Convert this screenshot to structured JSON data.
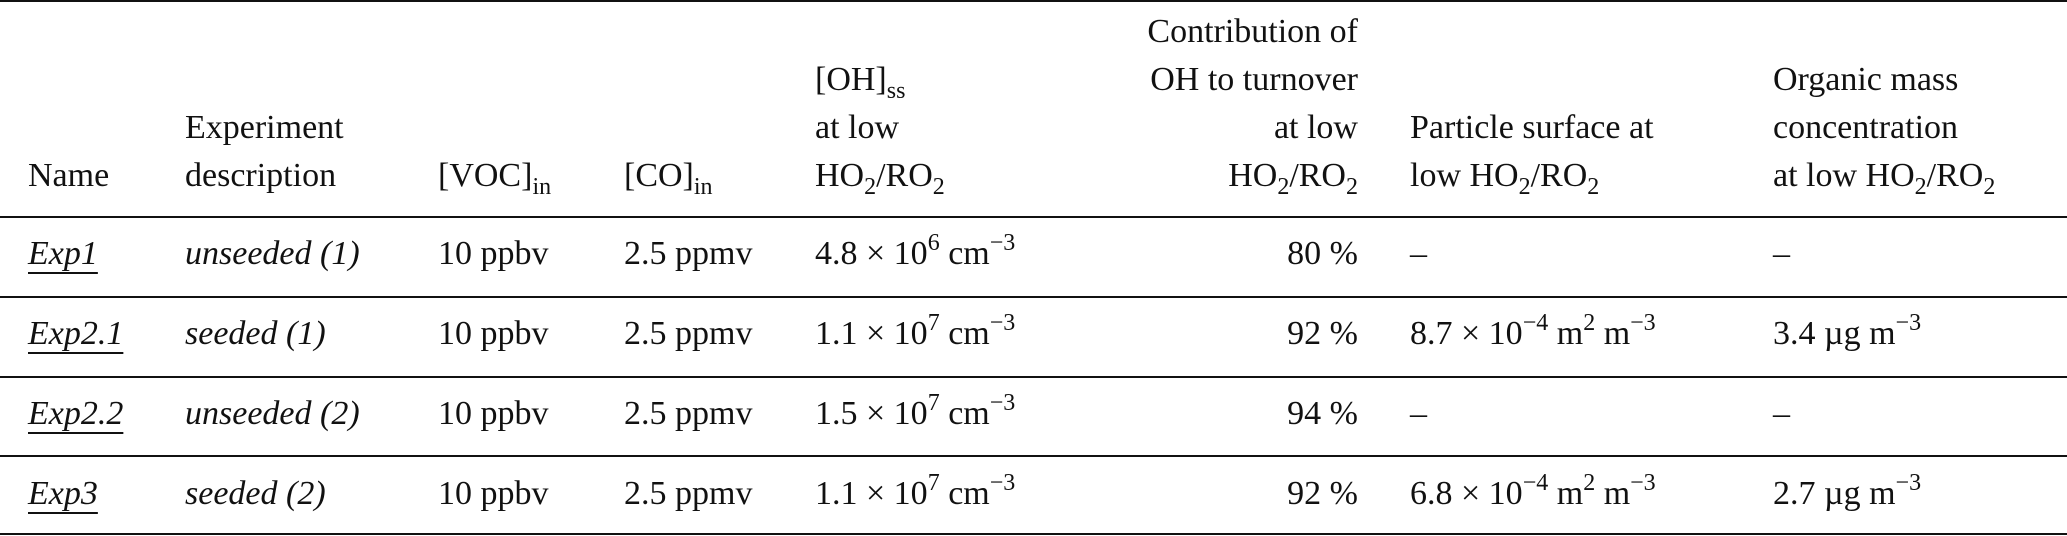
{
  "headers": {
    "name": "Name",
    "experiment_description": [
      "Experiment",
      "description"
    ],
    "voc": {
      "base": "[VOC]",
      "sub": "in"
    },
    "co": {
      "base": "[CO]",
      "sub": "in"
    },
    "oh_ss": {
      "line1_base": "[OH]",
      "line1_sub": "ss",
      "line2": "at low",
      "line3_a": "HO",
      "line3_sub1": "2",
      "line3_b": "/RO",
      "line3_sub2": "2"
    },
    "oh_contribution": {
      "line1": "Contribution of",
      "line2": "OH to turnover",
      "line3": "at low",
      "line4_a": "HO",
      "line4_sub1": "2",
      "line4_b": "/RO",
      "line4_sub2": "2"
    },
    "particle_surface": {
      "line1": "Particle surface at",
      "line2_a": "low HO",
      "line2_sub1": "2",
      "line2_b": "/RO",
      "line2_sub2": "2"
    },
    "organic_mass": {
      "line1": "Organic mass",
      "line2": "concentration",
      "line3_a": "at low HO",
      "line3_sub1": "2",
      "line3_b": "/RO",
      "line3_sub2": "2"
    }
  },
  "rows": [
    {
      "name": "Exp1",
      "description": "unseeded (1)",
      "voc": "10 ppbv",
      "co": "2.5 ppmv",
      "oh_mant": "4.8 × 10",
      "oh_exp": "6",
      "oh_unit": " cm",
      "oh_unit_exp": "−3",
      "contribution": "80 %",
      "surface": "–",
      "organic": "–"
    },
    {
      "name": "Exp2.1",
      "description": "seeded (1)",
      "voc": "10 ppbv",
      "co": "2.5 ppmv",
      "oh_mant": "1.1 × 10",
      "oh_exp": "7",
      "oh_unit": " cm",
      "oh_unit_exp": "−3",
      "contribution": "92 %",
      "surface_mant": "8.7 × 10",
      "surface_exp": "−4",
      "surface_u1": " m",
      "surface_u1_exp": "2",
      "surface_u2": " m",
      "surface_u2_exp": "−3",
      "organic_val": "3.4 µg m",
      "organic_exp": "−3"
    },
    {
      "name": "Exp2.2",
      "description": "unseeded (2)",
      "voc": "10 ppbv",
      "co": "2.5 ppmv",
      "oh_mant": "1.5 × 10",
      "oh_exp": "7",
      "oh_unit": " cm",
      "oh_unit_exp": "−3",
      "contribution": "94 %",
      "surface": "–",
      "organic": "–"
    },
    {
      "name": "Exp3",
      "description": "seeded (2)",
      "voc": "10 ppbv",
      "co": "2.5 ppmv",
      "oh_mant": "1.1 × 10",
      "oh_exp": "7",
      "oh_unit": " cm",
      "oh_unit_exp": "−3",
      "contribution": "92 %",
      "surface_mant": "6.8 × 10",
      "surface_exp": "−4",
      "surface_u1": " m",
      "surface_u1_exp": "2",
      "surface_u2": " m",
      "surface_u2_exp": "−3",
      "organic_val": "2.7 µg m",
      "organic_exp": "−3"
    }
  ]
}
